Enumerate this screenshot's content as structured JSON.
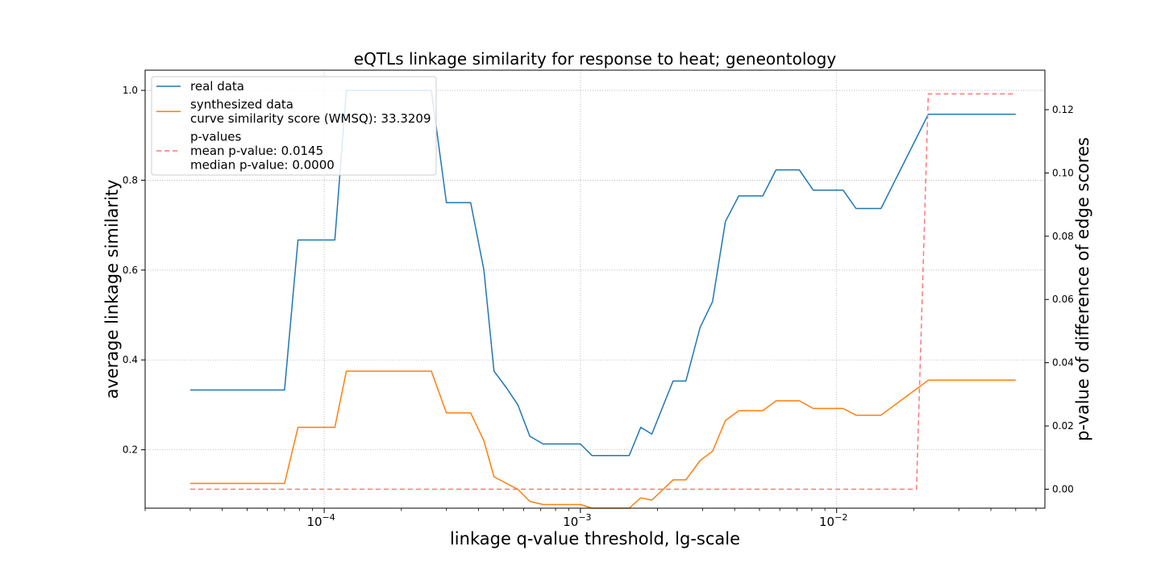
{
  "chart_data": {
    "type": "line",
    "title": "eQTLs linkage similarity for response to heat; geneontology",
    "xlabel": "linkage q-value threshold, lg-scale",
    "ylabel": "average linkage similarity",
    "y2label": "p-value of difference of edge scores",
    "x_scale": "log",
    "xlim": [
      2e-05,
      0.065
    ],
    "ylim": [
      0.07,
      1.045
    ],
    "y2lim": [
      -0.006,
      0.1325
    ],
    "grid": true,
    "legend_placement": "upper left",
    "x_major_ticks": [
      {
        "value": 0.0001,
        "label": "10",
        "exp": "−4"
      },
      {
        "value": 0.001,
        "label": "10",
        "exp": "−3"
      },
      {
        "value": 0.01,
        "label": "10",
        "exp": "−2"
      }
    ],
    "y_ticks": [
      {
        "value": 0.2,
        "label": "0.2"
      },
      {
        "value": 0.4,
        "label": "0.4"
      },
      {
        "value": 0.6,
        "label": "0.6"
      },
      {
        "value": 0.8,
        "label": "0.8"
      },
      {
        "value": 1.0,
        "label": "1.0"
      }
    ],
    "y2_ticks": [
      {
        "value": 0.0,
        "label": "0.00"
      },
      {
        "value": 0.02,
        "label": "0.02"
      },
      {
        "value": 0.04,
        "label": "0.04"
      },
      {
        "value": 0.06,
        "label": "0.06"
      },
      {
        "value": 0.08,
        "label": "0.08"
      },
      {
        "value": 0.1,
        "label": "0.10"
      },
      {
        "value": 0.12,
        "label": "0.12"
      }
    ],
    "legend": [
      {
        "key": "real",
        "lines": [
          "real data"
        ]
      },
      {
        "key": "synth",
        "lines": [
          "synthesized data",
          "curve similarity score (WMSQ): 33.3209"
        ]
      },
      {
        "key": "pval",
        "lines": [
          "p-values",
          "mean p-value: 0.0145",
          "median p-value: 0.0000"
        ]
      }
    ],
    "series": [
      {
        "key": "real",
        "name": "real data",
        "color": "#1f77b4",
        "axis": "left",
        "style": "solid",
        "points": [
          [
            3e-05,
            0.333
          ],
          [
            7e-05,
            0.333
          ],
          [
            7.9e-05,
            0.667
          ],
          [
            0.00011,
            0.667
          ],
          [
            0.000122,
            1.0
          ],
          [
            0.000262,
            1.0
          ],
          [
            0.0003,
            0.75
          ],
          [
            0.000373,
            0.75
          ],
          [
            0.00042,
            0.6
          ],
          [
            0.00046,
            0.375
          ],
          [
            0.000515,
            0.3375
          ],
          [
            0.00057,
            0.3
          ],
          [
            0.000635,
            0.23
          ],
          [
            0.000715,
            0.213
          ],
          [
            0.001,
            0.213
          ],
          [
            0.00111,
            0.187
          ],
          [
            0.00155,
            0.187
          ],
          [
            0.00172,
            0.25
          ],
          [
            0.0019,
            0.235
          ],
          [
            0.0023,
            0.353
          ],
          [
            0.00258,
            0.353
          ],
          [
            0.00293,
            0.472
          ],
          [
            0.00328,
            0.53
          ],
          [
            0.00368,
            0.708
          ],
          [
            0.00415,
            0.765
          ],
          [
            0.00515,
            0.765
          ],
          [
            0.0058,
            0.823
          ],
          [
            0.00715,
            0.823
          ],
          [
            0.0081,
            0.778
          ],
          [
            0.0106,
            0.778
          ],
          [
            0.0119,
            0.737
          ],
          [
            0.0149,
            0.737
          ],
          [
            0.0228,
            0.947
          ],
          [
            0.05,
            0.947
          ]
        ]
      },
      {
        "key": "synth",
        "name": "synthesized data",
        "color": "#ff7f0e",
        "axis": "left",
        "style": "solid",
        "points": [
          [
            3e-05,
            0.125
          ],
          [
            7e-05,
            0.125
          ],
          [
            7.9e-05,
            0.25
          ],
          [
            0.00011,
            0.25
          ],
          [
            0.000122,
            0.375
          ],
          [
            0.000262,
            0.375
          ],
          [
            0.0003,
            0.282
          ],
          [
            0.000373,
            0.282
          ],
          [
            0.00042,
            0.22
          ],
          [
            0.00046,
            0.14
          ],
          [
            0.000515,
            0.125
          ],
          [
            0.00057,
            0.112
          ],
          [
            0.000635,
            0.085
          ],
          [
            0.000715,
            0.078
          ],
          [
            0.001,
            0.078
          ],
          [
            0.00111,
            0.07
          ],
          [
            0.00155,
            0.07
          ],
          [
            0.00172,
            0.093
          ],
          [
            0.0019,
            0.088
          ],
          [
            0.0023,
            0.133
          ],
          [
            0.00258,
            0.133
          ],
          [
            0.00293,
            0.176
          ],
          [
            0.00328,
            0.197
          ],
          [
            0.00368,
            0.265
          ],
          [
            0.00415,
            0.287
          ],
          [
            0.00515,
            0.287
          ],
          [
            0.0058,
            0.309
          ],
          [
            0.00715,
            0.309
          ],
          [
            0.0081,
            0.292
          ],
          [
            0.0106,
            0.292
          ],
          [
            0.0119,
            0.277
          ],
          [
            0.0149,
            0.277
          ],
          [
            0.0228,
            0.355
          ],
          [
            0.05,
            0.355
          ]
        ]
      },
      {
        "key": "pval",
        "name": "p-values",
        "color": "#ff7777",
        "axis": "right",
        "style": "dashed",
        "points": [
          [
            3e-05,
            0.0
          ],
          [
            0.0205,
            0.0
          ],
          [
            0.0228,
            0.125
          ],
          [
            0.05,
            0.125
          ]
        ]
      }
    ]
  }
}
